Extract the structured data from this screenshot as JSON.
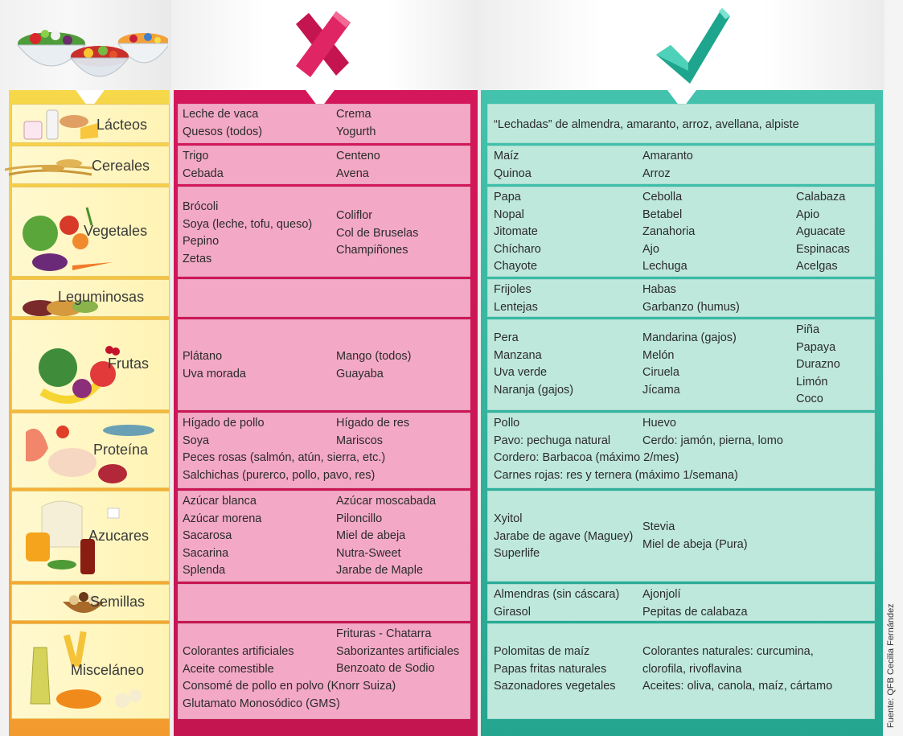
{
  "credit": "Fuente: QFB Cecilia Fernández",
  "rows": [
    {
      "category": "Lácteos",
      "avoid": [
        [
          "Leche de vaca",
          "Quesos (todos)"
        ],
        [
          "Crema",
          "Yogurth"
        ]
      ],
      "recommended": [
        [
          "“Lechadas” de almendra, amaranto, arroz, avellana, alpiste"
        ]
      ]
    },
    {
      "category": "Cereales",
      "avoid": [
        [
          "Trigo",
          "Cebada"
        ],
        [
          "Centeno",
          "Avena"
        ]
      ],
      "recommended": [
        [
          "Maíz",
          "Quinoa"
        ],
        [
          "Amaranto",
          "Arroz"
        ]
      ]
    },
    {
      "category": "Vegetales",
      "avoid": [
        [
          "Brócoli",
          "Soya (leche, tofu, queso)",
          "Pepino",
          "Zetas"
        ],
        [
          "Coliflor",
          "Col de Bruselas",
          "Champiñones"
        ]
      ],
      "recommended": [
        [
          "Papa",
          "Nopal",
          "Jitomate",
          "Chícharo",
          "Chayote"
        ],
        [
          "Cebolla",
          "Betabel",
          "Zanahoria",
          "Ajo",
          "Lechuga"
        ],
        [
          "Calabaza",
          "Apio",
          "Aguacate",
          "Espinacas",
          "Acelgas"
        ]
      ]
    },
    {
      "category": "Leguminosas",
      "avoid": [],
      "recommended": [
        [
          "Frijoles",
          "Lentejas"
        ],
        [
          "Habas",
          "Garbanzo (humus)"
        ]
      ]
    },
    {
      "category": "Frutas",
      "avoid": [
        [
          "Plátano",
          "Uva morada"
        ],
        [
          "Mango (todos)",
          "Guayaba"
        ]
      ],
      "recommended": [
        [
          "Pera",
          "Manzana",
          "Uva verde",
          "Naranja (gajos)"
        ],
        [
          "Mandarina (gajos)",
          "Melón",
          "Ciruela",
          "Jícama"
        ],
        [
          "Piña",
          "Papaya",
          "Durazno",
          "Limón",
          "Coco"
        ]
      ]
    },
    {
      "category": "Proteína",
      "avoid": [
        [
          "Hígado de pollo",
          "Soya"
        ],
        [
          "Hígado de res",
          "Mariscos"
        ],
        [
          "Peces rosas (salmón, atún, sierra, etc.)",
          "Salchichas (purerco, pollo, pavo, res)"
        ]
      ],
      "recommended": [
        [
          "Pollo",
          "Pavo: pechuga natural"
        ],
        [
          "Huevo",
          "Cerdo: jamón, pierna, lomo"
        ],
        [
          "Cordero: Barbacoa (máximo 2/mes)",
          "Carnes rojas: res y ternera (máximo 1/semana)"
        ]
      ]
    },
    {
      "category": "Azucares",
      "avoid": [
        [
          "Azúcar blanca",
          "Azúcar morena",
          "Sacarosa",
          "Sacarina",
          "Splenda"
        ],
        [
          "Azúcar moscabada",
          "Piloncillo",
          "Miel de abeja",
          "Nutra-Sweet",
          "Jarabe de Maple"
        ]
      ],
      "recommended": [
        [
          "Xyitol",
          "Jarabe de agave (Maguey)",
          "Superlife"
        ],
        [
          "Stevia",
          "Miel de abeja (Pura)"
        ]
      ]
    },
    {
      "category": "Semillas",
      "avoid": [],
      "recommended": [
        [
          "Almendras (sin cáscara)",
          "Girasol"
        ],
        [
          "Ajonjolí",
          "Pepitas de calabaza"
        ]
      ]
    },
    {
      "category": "Misceláneo",
      "avoid": [
        [
          "Colorantes artificiales",
          "Aceite comestible"
        ],
        [
          "Frituras - Chatarra",
          "Saborizantes artificiales",
          "Benzoato de Sodio"
        ],
        [
          "Consomé de pollo en polvo (Knorr Suiza)",
          "Glutamato Monosódico (GMS)"
        ]
      ],
      "recommended": [
        [
          "Polomitas de maíz",
          "Papas fritas naturales",
          "Sazonadores vegetales"
        ],
        [
          "Colorantes naturales: curcumina,",
          "clorofila, rivoflavina",
          "Aceites: oliva, canola, maíz, cártamo"
        ]
      ]
    }
  ]
}
